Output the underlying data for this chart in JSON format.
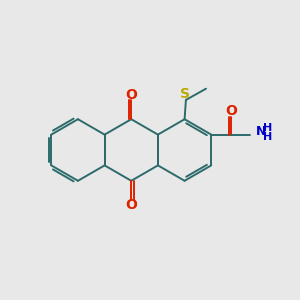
{
  "bg_color": "#e8e8e8",
  "ring_color": "#2d6b6b",
  "ketone_o_color": "#dd2200",
  "sulfur_color": "#bbaa00",
  "nitrogen_color": "#0000cc",
  "amide_o_color": "#dd4400",
  "bond_lw": 1.4,
  "xlim": [
    0,
    11
  ],
  "ylim": [
    0,
    10
  ],
  "figsize": [
    3.0,
    3.0
  ],
  "dpi": 100
}
